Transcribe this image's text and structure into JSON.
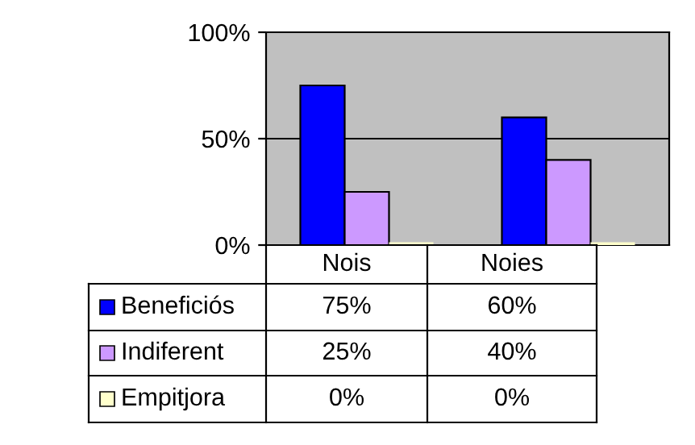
{
  "chart_data": {
    "type": "bar",
    "categories": [
      "Nois",
      "Noies"
    ],
    "series": [
      {
        "name": "Beneficiós",
        "color": "#0000ff",
        "values": [
          75,
          60
        ],
        "value_labels": [
          "75%",
          "60%"
        ]
      },
      {
        "name": "Indiferent",
        "color": "#cc99ff",
        "values": [
          25,
          40
        ],
        "value_labels": [
          "25%",
          "40%"
        ]
      },
      {
        "name": "Empitjora",
        "color": "#ffffcc",
        "values": [
          0,
          0
        ],
        "value_labels": [
          "0%",
          "0%"
        ]
      }
    ],
    "ylim": [
      0,
      100
    ],
    "yticks": [
      {
        "value": 0,
        "label": "0%"
      },
      {
        "value": 50,
        "label": "50%"
      },
      {
        "value": 100,
        "label": "100%"
      }
    ],
    "grid": "y",
    "legend": "bottom"
  }
}
